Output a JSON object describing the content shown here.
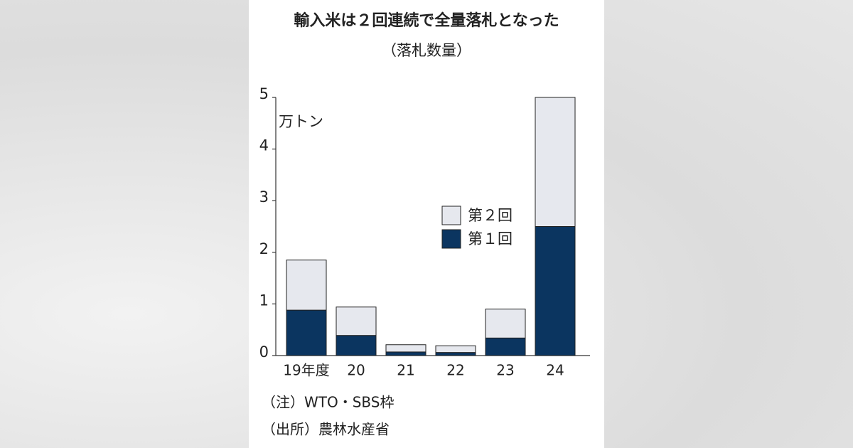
{
  "chart_data": {
    "type": "stacked_bar",
    "title": "輸入米は２回連続で全量落札となった",
    "subtitle": "（落札数量）",
    "y_unit": "万トン",
    "categories": [
      "19年度",
      "20",
      "21",
      "22",
      "23",
      "24"
    ],
    "series": [
      {
        "name": "第１回",
        "color": "#0b3560",
        "values": [
          0.88,
          0.39,
          0.07,
          0.06,
          0.34,
          2.5
        ]
      },
      {
        "name": "第２回",
        "color": "#e6e8ee",
        "values": [
          0.97,
          0.55,
          0.14,
          0.13,
          0.56,
          2.5
        ]
      }
    ],
    "ylim": [
      0,
      5
    ],
    "yticks": [
      0,
      1,
      2,
      3,
      4,
      5
    ],
    "notes": [
      "（注）WTO・SBS枠",
      "（出所）農林水産省"
    ]
  }
}
